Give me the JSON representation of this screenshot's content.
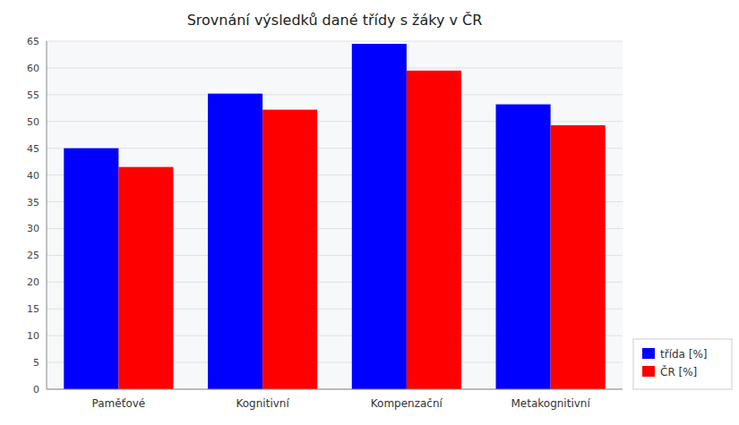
{
  "chart_data": {
    "type": "bar",
    "title": "Srovnání výsledků dané třídy s žáky v ČR",
    "categories": [
      "Paměťové",
      "Kognitivní",
      "Kompenzační",
      "Metakognitivní"
    ],
    "series": [
      {
        "name": "třída [%]",
        "color": "#0000ff",
        "values": [
          45.0,
          55.2,
          64.5,
          53.2
        ]
      },
      {
        "name": "ČR [%]",
        "color": "#ff0000",
        "values": [
          41.5,
          52.2,
          59.5,
          49.3
        ]
      }
    ],
    "ylim": [
      0,
      65
    ],
    "yticks": [
      0,
      5,
      10,
      15,
      20,
      25,
      30,
      35,
      40,
      45,
      50,
      55,
      60,
      65
    ],
    "grid": true,
    "legend": "lower right"
  }
}
